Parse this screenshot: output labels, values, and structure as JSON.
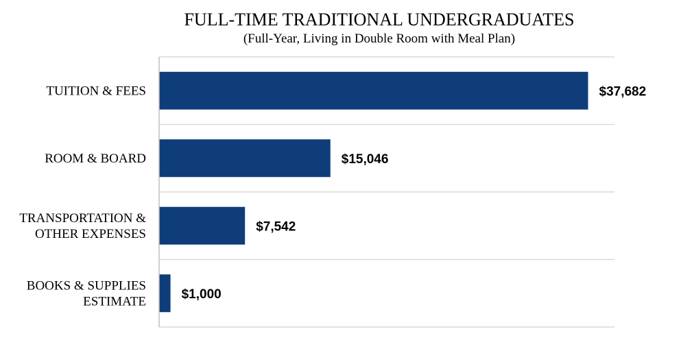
{
  "chart_data": {
    "type": "bar",
    "orientation": "horizontal",
    "title": "FULL-TIME TRADITIONAL UNDERGRADUATES",
    "subtitle": "(Full-Year, Living in Double Room with Meal Plan)",
    "categories": [
      [
        "TUITION & FEES"
      ],
      [
        "ROOM & BOARD"
      ],
      [
        "TRANSPORTATION &",
        "OTHER EXPENSES"
      ],
      [
        "BOOKS & SUPPLIES",
        "ESTIMATE"
      ]
    ],
    "values": [
      37682,
      15046,
      7542,
      1000
    ],
    "value_labels": [
      "$37,682",
      "$15,046",
      "$7,542",
      "$1,000"
    ],
    "xlim": [
      0,
      40000
    ],
    "grid": true,
    "bar_color": "#0f3d7a",
    "legend": "none"
  }
}
